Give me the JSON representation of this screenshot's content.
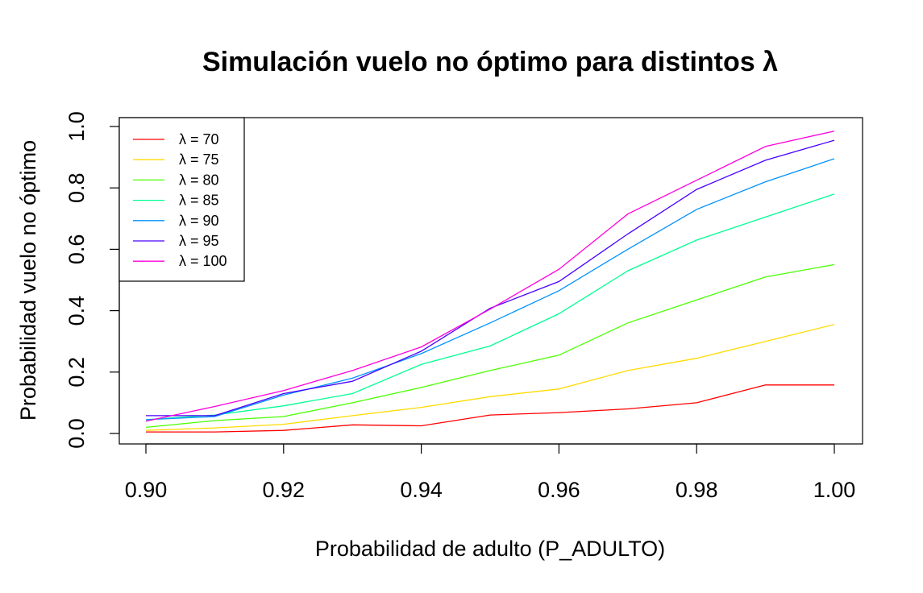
{
  "chart_data": {
    "type": "line",
    "title": "Simulación vuelo no óptimo para distintos λ",
    "xlabel": "Probabilidad de adulto (P_ADULTO)",
    "ylabel": "Probabilidad vuelo no óptimo",
    "x": [
      0.9,
      0.91,
      0.92,
      0.93,
      0.94,
      0.95,
      0.96,
      0.97,
      0.98,
      0.99,
      1.0
    ],
    "xlim": [
      0.9,
      1.0
    ],
    "ylim": [
      0.0,
      1.0
    ],
    "xticks": [
      "0.90",
      "0.92",
      "0.94",
      "0.96",
      "0.98",
      "1.00"
    ],
    "yticks": [
      "0.0",
      "0.2",
      "0.4",
      "0.6",
      "0.8",
      "1.0"
    ],
    "legend_position": "top-left",
    "grid": false,
    "series": [
      {
        "name": "λ = 70",
        "color": "#FF0000",
        "values": [
          0.005,
          0.005,
          0.01,
          0.028,
          0.025,
          0.06,
          0.068,
          0.08,
          0.1,
          0.158,
          0.158
        ]
      },
      {
        "name": "λ = 75",
        "color": "#FFDB00",
        "values": [
          0.01,
          0.018,
          0.03,
          0.058,
          0.085,
          0.12,
          0.145,
          0.205,
          0.245,
          0.3,
          0.355
        ]
      },
      {
        "name": "λ = 80",
        "color": "#49FF00",
        "values": [
          0.02,
          0.042,
          0.055,
          0.1,
          0.15,
          0.205,
          0.255,
          0.36,
          0.435,
          0.51,
          0.55
        ]
      },
      {
        "name": "λ = 85",
        "color": "#00FF92",
        "values": [
          0.045,
          0.06,
          0.09,
          0.13,
          0.225,
          0.285,
          0.39,
          0.53,
          0.63,
          0.705,
          0.78
        ]
      },
      {
        "name": "λ = 90",
        "color": "#0092FF",
        "values": [
          0.045,
          0.055,
          0.125,
          0.18,
          0.26,
          0.36,
          0.465,
          0.6,
          0.73,
          0.82,
          0.895
        ]
      },
      {
        "name": "λ = 95",
        "color": "#4900FF",
        "values": [
          0.058,
          0.058,
          0.13,
          0.17,
          0.268,
          0.408,
          0.495,
          0.65,
          0.795,
          0.89,
          0.955
        ]
      },
      {
        "name": "λ = 100",
        "color": "#FF00DB",
        "values": [
          0.04,
          0.088,
          0.14,
          0.205,
          0.282,
          0.405,
          0.535,
          0.715,
          0.825,
          0.935,
          0.985
        ]
      }
    ]
  }
}
